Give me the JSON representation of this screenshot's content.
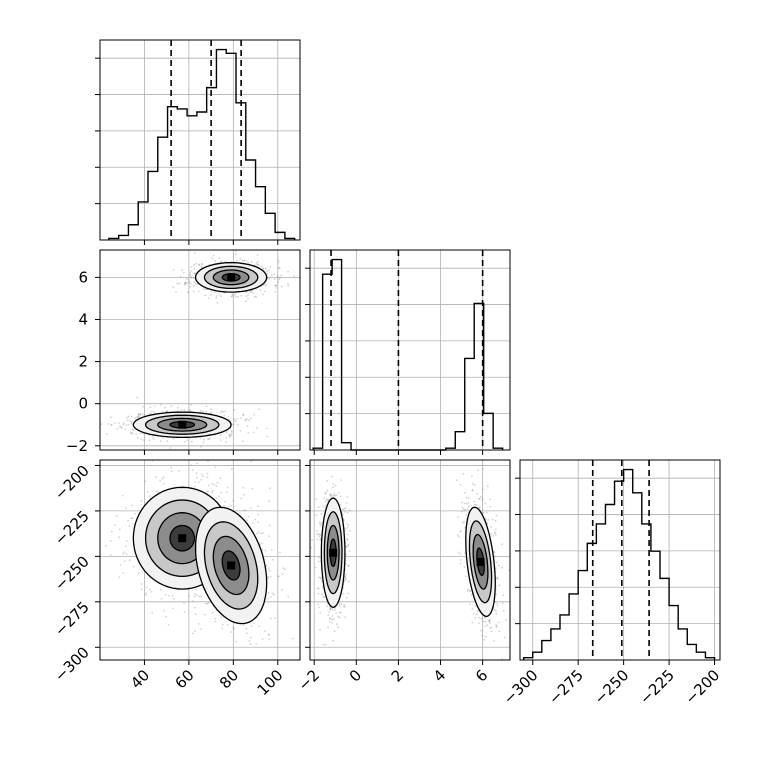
{
  "chart_data": {
    "type": "corner",
    "title": "",
    "parameters": [
      "",
      "",
      ""
    ],
    "axis_limits": {
      "p0": [
        20,
        110
      ],
      "p1": [
        -2.2,
        7.3
      ],
      "p2": [
        -307,
        -197
      ]
    },
    "ticks": {
      "p0": [
        40,
        60,
        80,
        100
      ],
      "p1_x": [
        -2,
        0,
        2,
        4,
        6
      ],
      "p1_y": [
        -2,
        0,
        2,
        4,
        6
      ],
      "p2_x": [
        -300,
        -275,
        -250,
        -225,
        -200
      ],
      "p2_y": [
        -200,
        -225,
        -250,
        -275,
        -300
      ]
    },
    "tick_labels": {
      "p0_x": [
        "40",
        "60",
        "80",
        "100"
      ],
      "p1_x": [
        "−2",
        "0",
        "2",
        "4",
        "6"
      ],
      "p1_y": [
        "−2",
        "0",
        "2",
        "4",
        "6"
      ],
      "p2_x": [
        "−300",
        "−275",
        "−250",
        "−225",
        "−200"
      ],
      "p2_y": [
        "−200",
        "−225",
        "−250",
        "−275",
        "−300"
      ]
    },
    "histograms": {
      "p0": {
        "edges": [
          24,
          28.4,
          32.8,
          37.2,
          41.6,
          46,
          50.4,
          54.8,
          59.2,
          63.6,
          68,
          72.4,
          76.8,
          81.2,
          85.6,
          90,
          94.4,
          98.8,
          103.2,
          107.6
        ],
        "counts": [
          0.2,
          0.6,
          2.0,
          5.0,
          9.0,
          13.5,
          17.5,
          17.2,
          16.3,
          16.8,
          20.0,
          25.0,
          24.5,
          18.0,
          10.5,
          7.0,
          3.5,
          1.0,
          0.2
        ],
        "quantiles": [
          52,
          70,
          83.5
        ]
      },
      "p1": {
        "edges": [
          -2.05,
          -1.6,
          -1.15,
          -0.7,
          -0.25,
          0.2,
          0.65,
          1.1,
          1.55,
          2.0,
          2.45,
          2.9,
          3.35,
          3.8,
          4.25,
          4.7,
          5.15,
          5.6,
          6.05,
          6.5,
          6.95
        ],
        "counts": [
          0.5,
          48,
          52,
          2,
          0,
          0,
          0,
          0,
          0,
          0,
          0,
          0,
          0,
          0,
          0.5,
          5,
          25,
          40,
          10,
          0.5
        ],
        "quantiles": [
          -1.2,
          2.0,
          6.0
        ]
      },
      "p2": {
        "edges": [
          -305,
          -300,
          -295,
          -290,
          -285,
          -280,
          -275,
          -270,
          -265,
          -260,
          -255,
          -250,
          -245,
          -240,
          -235,
          -230,
          -225,
          -220,
          -215,
          -210,
          -205,
          -200
        ],
        "counts": [
          0.3,
          1.0,
          2.5,
          4.0,
          5.8,
          8.5,
          11.5,
          15.0,
          17.5,
          20.0,
          23.0,
          24.5,
          21.5,
          17.5,
          14.0,
          10.5,
          7.0,
          4.0,
          2.0,
          1.0,
          0.3
        ],
        "quantiles": [
          -267,
          -251,
          -236
        ]
      }
    },
    "joint_modes": {
      "p0_p1": [
        {
          "x": 79,
          "y": 6.0,
          "sx": 8,
          "sy": 0.35,
          "rho": 0
        },
        {
          "x": 57,
          "y": -1.0,
          "sx": 11,
          "sy": 0.3,
          "rho": 0
        }
      ],
      "p0_p2": [
        {
          "x": 57,
          "y": -240,
          "sx": 11,
          "sy": 14,
          "rho": 0
        },
        {
          "x": 79,
          "y": -255,
          "sx": 8,
          "sy": 16,
          "rho": -0.3
        }
      ],
      "p1_p2": [
        {
          "x": -1.1,
          "y": -248,
          "sx": 0.28,
          "sy": 15,
          "rho": 0
        },
        {
          "x": 5.9,
          "y": -253,
          "sx": 0.35,
          "sy": 15,
          "rho": -0.4
        }
      ]
    },
    "contour_levels": [
      "0.5-sigma",
      "1-sigma",
      "1.5-sigma",
      "2-sigma"
    ],
    "grid": true,
    "colors": {
      "line": "#000000",
      "grid": "#b0b0b0",
      "points": "#808080",
      "density": "#000000"
    }
  }
}
